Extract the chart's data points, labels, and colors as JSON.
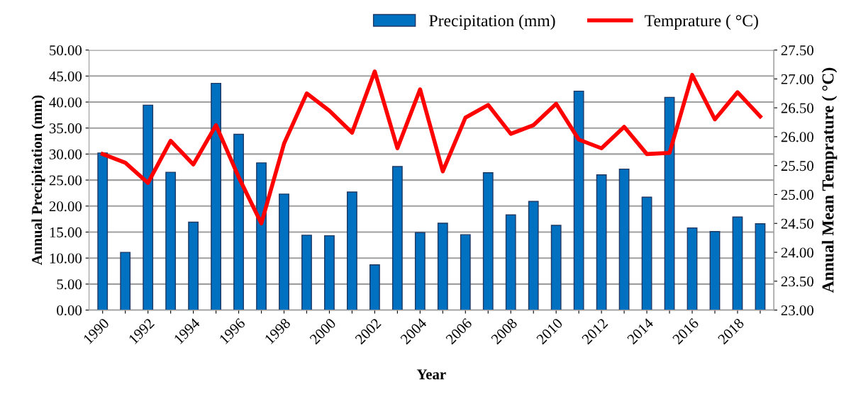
{
  "chart_data": {
    "type": "bar",
    "xlabel": "Year",
    "ylabel": "Annual Precipitation (mm)",
    "y2label": "Annual Mean Temprature ( °C)",
    "categories": [
      "1990",
      null,
      "1992",
      null,
      "1994",
      null,
      "1996",
      null,
      "1998",
      null,
      "2000",
      null,
      "2002",
      null,
      "2004",
      null,
      "2006",
      null,
      "2008",
      null,
      "2010",
      null,
      "2012",
      null,
      "2014",
      null,
      "2016",
      null,
      "2018",
      null
    ],
    "series": [
      {
        "name": "Precipitation (mm)",
        "color": "#0070c0",
        "values": [
          30.2,
          11.1,
          39.4,
          26.5,
          16.9,
          43.6,
          33.8,
          28.3,
          22.3,
          14.4,
          14.3,
          22.7,
          8.7,
          27.6,
          14.9,
          16.7,
          14.5,
          26.4,
          18.3,
          20.9,
          16.3,
          42.1,
          26.0,
          27.1,
          21.7,
          40.9,
          15.8,
          15.1,
          17.9,
          16.6
        ]
      },
      {
        "name": "Temprature ( °C)",
        "type": "line",
        "axis": "y2",
        "color": "#ff0000",
        "values": [
          25.7,
          25.55,
          25.2,
          25.93,
          25.52,
          26.2,
          25.3,
          24.5,
          25.88,
          26.75,
          26.45,
          26.07,
          27.13,
          25.8,
          26.82,
          25.4,
          26.33,
          26.55,
          26.05,
          26.2,
          26.57,
          25.95,
          25.8,
          26.17,
          25.7,
          25.72,
          27.07,
          26.3,
          26.77,
          26.35
        ]
      }
    ],
    "ylim": [
      0,
      50
    ],
    "yticks": [
      {
        "value": 0,
        "label": "0.00"
      },
      {
        "value": 5,
        "label": "5.00"
      },
      {
        "value": 10,
        "label": "10.00"
      },
      {
        "value": 15,
        "label": "15.00"
      },
      {
        "value": 20,
        "label": "20.00"
      },
      {
        "value": 25,
        "label": "25.00"
      },
      {
        "value": 30,
        "label": "30.00"
      },
      {
        "value": 35,
        "label": "35.00"
      },
      {
        "value": 40,
        "label": "40.00"
      },
      {
        "value": 45,
        "label": "45.00"
      },
      {
        "value": 50,
        "label": "50.00"
      }
    ],
    "y2lim": [
      23,
      27.5
    ],
    "y2ticks": [
      {
        "value": 23,
        "label": "23.00"
      },
      {
        "value": 23.5,
        "label": "23.50"
      },
      {
        "value": 24,
        "label": "24.00"
      },
      {
        "value": 24.5,
        "label": "24.50"
      },
      {
        "value": 25,
        "label": "25.00"
      },
      {
        "value": 25.5,
        "label": "25.50"
      },
      {
        "value": 26,
        "label": "26.00"
      },
      {
        "value": 26.5,
        "label": "26.50"
      },
      {
        "value": 27,
        "label": "27.00"
      },
      {
        "value": 27.5,
        "label": "27.50"
      }
    ],
    "grid": "y",
    "legend": "top right",
    "marker": "none",
    "line_style": "solid"
  }
}
